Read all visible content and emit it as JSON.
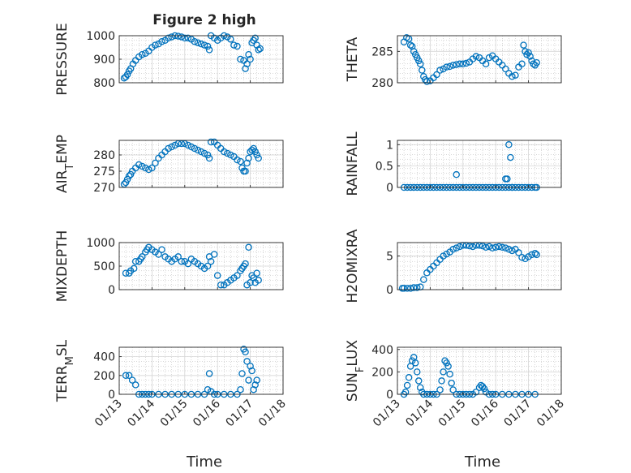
{
  "figure_title": "Figure 2 high",
  "colors": {
    "marker": "#0072BD",
    "axis": "#262626",
    "grid": "#b0b0b0",
    "background": "#ffffff"
  },
  "chart_data": [
    {
      "type": "scatter",
      "title": "Figure 2 high",
      "ylabel": "PRESSURE",
      "ylim": [
        800,
        1000
      ],
      "yticks": [
        800,
        900,
        1000
      ],
      "yticklabels": [
        "800",
        "900",
        "1000"
      ],
      "xlim": [
        13.0,
        18.0
      ],
      "xticklabels": [
        "01/13",
        "01/14",
        "01/15",
        "01/16",
        "01/17",
        "01/18"
      ],
      "grid": true,
      "show_xticklabels": false,
      "x": [
        13.15,
        13.2,
        13.25,
        13.3,
        13.35,
        13.42,
        13.5,
        13.6,
        13.7,
        13.8,
        13.9,
        14.0,
        14.1,
        14.2,
        14.3,
        14.4,
        14.5,
        14.6,
        14.7,
        14.8,
        14.9,
        15.0,
        15.1,
        15.2,
        15.3,
        15.4,
        15.5,
        15.6,
        15.7,
        15.75,
        15.8,
        15.9,
        16.0,
        16.1,
        16.2,
        16.3,
        16.4,
        16.5,
        16.6,
        16.7,
        16.8,
        16.85,
        16.9,
        16.95,
        17.0,
        17.05,
        17.1,
        17.15,
        17.2,
        17.25,
        17.3
      ],
      "y": [
        820,
        825,
        835,
        850,
        860,
        880,
        895,
        910,
        920,
        925,
        935,
        950,
        960,
        965,
        975,
        980,
        990,
        995,
        1000,
        998,
        995,
        990,
        990,
        985,
        975,
        970,
        965,
        960,
        955,
        940,
        1000,
        990,
        980,
        990,
        1000,
        995,
        985,
        960,
        955,
        900,
        895,
        860,
        880,
        920,
        900,
        970,
        980,
        990,
        960,
        940,
        945
      ]
    },
    {
      "type": "scatter",
      "ylabel": "THETA",
      "ylim": [
        280,
        287.5
      ],
      "yticks": [
        280,
        285
      ],
      "yticklabels": [
        "280",
        "285"
      ],
      "xlim": [
        13.0,
        18.0
      ],
      "grid": true,
      "show_xticklabels": false,
      "x": [
        13.2,
        13.28,
        13.35,
        13.4,
        13.45,
        13.5,
        13.55,
        13.6,
        13.65,
        13.7,
        13.75,
        13.8,
        13.85,
        13.9,
        14.0,
        14.1,
        14.2,
        14.3,
        14.4,
        14.5,
        14.6,
        14.7,
        14.8,
        14.9,
        15.0,
        15.1,
        15.2,
        15.3,
        15.4,
        15.5,
        15.6,
        15.7,
        15.8,
        15.9,
        16.0,
        16.1,
        16.2,
        16.3,
        16.4,
        16.5,
        16.6,
        16.7,
        16.8,
        16.85,
        16.9,
        16.95,
        17.0,
        17.05,
        17.1,
        17.15,
        17.2,
        17.25
      ],
      "y": [
        286.5,
        287.2,
        287.0,
        286.0,
        285.8,
        285.0,
        284.5,
        284.0,
        283.5,
        283.0,
        282.0,
        281.0,
        280.5,
        280.2,
        280.3,
        280.8,
        281.3,
        282.0,
        282.2,
        282.5,
        282.6,
        282.8,
        282.9,
        283.0,
        283.0,
        283.1,
        283.3,
        283.8,
        284.2,
        284.0,
        283.5,
        283.0,
        284.0,
        284.3,
        283.8,
        283.3,
        282.8,
        282.2,
        281.5,
        281.0,
        281.2,
        282.5,
        283.0,
        286.0,
        285.0,
        284.5,
        284.8,
        284.2,
        283.5,
        283.0,
        282.8,
        283.2
      ]
    },
    {
      "type": "scatter",
      "ylabel": "AIR_TEMP",
      "ylim": [
        270,
        284.5
      ],
      "yticks": [
        270,
        275,
        280
      ],
      "yticklabels": [
        "270",
        "275",
        "280"
      ],
      "xlim": [
        13.0,
        18.0
      ],
      "grid": true,
      "show_xticklabels": false,
      "x": [
        13.15,
        13.2,
        13.25,
        13.3,
        13.35,
        13.4,
        13.5,
        13.6,
        13.7,
        13.8,
        13.9,
        14.0,
        14.1,
        14.2,
        14.3,
        14.4,
        14.5,
        14.6,
        14.7,
        14.8,
        14.9,
        15.0,
        15.1,
        15.2,
        15.3,
        15.4,
        15.5,
        15.6,
        15.7,
        15.75,
        15.8,
        15.9,
        16.0,
        16.1,
        16.2,
        16.3,
        16.4,
        16.5,
        16.6,
        16.7,
        16.75,
        16.8,
        16.85,
        16.9,
        16.95,
        17.0,
        17.05,
        17.1,
        17.15,
        17.2,
        17.25
      ],
      "y": [
        271,
        271.5,
        272.5,
        273.5,
        274,
        275,
        276,
        277,
        276.5,
        276,
        275.5,
        276,
        277.5,
        279,
        280,
        281,
        282,
        282.5,
        283,
        283.5,
        283.5,
        283.5,
        283,
        282.5,
        282,
        281.5,
        281,
        280.5,
        280,
        279,
        284,
        284,
        283,
        282,
        281,
        280.5,
        280,
        279.5,
        278.5,
        278,
        276,
        275,
        275,
        277.5,
        279,
        281,
        281.5,
        282,
        281,
        280,
        279
      ]
    },
    {
      "type": "scatter",
      "ylabel": "RAINFALL",
      "ylim": [
        0,
        1.1
      ],
      "yticks": [
        0,
        0.5,
        1
      ],
      "yticklabels": [
        "0",
        "0.5",
        "1"
      ],
      "xlim": [
        13.0,
        18.0
      ],
      "grid": true,
      "show_xticklabels": false,
      "x": [
        13.2,
        13.3,
        13.4,
        13.5,
        13.6,
        13.7,
        13.8,
        13.9,
        14.0,
        14.1,
        14.2,
        14.3,
        14.4,
        14.5,
        14.6,
        14.7,
        14.8,
        14.9,
        15.0,
        15.1,
        15.2,
        15.3,
        15.4,
        15.5,
        15.6,
        15.7,
        15.8,
        15.9,
        16.0,
        16.1,
        16.2,
        16.3,
        16.4,
        16.5,
        16.6,
        16.7,
        16.8,
        16.9,
        17.0,
        17.1,
        17.2,
        17.25,
        14.8,
        16.3,
        16.35,
        16.4,
        16.45,
        16.5
      ],
      "y": [
        0,
        0,
        0,
        0,
        0,
        0,
        0,
        0,
        0,
        0,
        0,
        0,
        0,
        0,
        0,
        0,
        0,
        0,
        0,
        0,
        0,
        0,
        0,
        0,
        0,
        0,
        0,
        0,
        0,
        0,
        0,
        0,
        0,
        0,
        0,
        0,
        0,
        0,
        0,
        0,
        0,
        0,
        0.3,
        0.2,
        0.2,
        1.0,
        0.7,
        0
      ]
    },
    {
      "type": "scatter",
      "ylabel": "MIXDEPTH",
      "ylim": [
        0,
        1000
      ],
      "yticks": [
        0,
        500,
        1000
      ],
      "yticklabels": [
        "0",
        "500",
        "1000"
      ],
      "xlim": [
        13.0,
        18.0
      ],
      "grid": true,
      "show_xticklabels": false,
      "x": [
        13.2,
        13.3,
        13.35,
        13.45,
        13.5,
        13.6,
        13.65,
        13.7,
        13.8,
        13.85,
        13.9,
        14.0,
        14.1,
        14.2,
        14.3,
        14.4,
        14.5,
        14.6,
        14.7,
        14.8,
        14.9,
        15.0,
        15.1,
        15.2,
        15.3,
        15.4,
        15.5,
        15.6,
        15.7,
        15.75,
        15.8,
        15.9,
        16.0,
        16.1,
        16.2,
        16.3,
        16.4,
        16.5,
        16.6,
        16.7,
        16.75,
        16.8,
        16.85,
        16.9,
        16.95,
        17.0,
        17.05,
        17.1,
        17.15,
        17.2,
        17.25
      ],
      "y": [
        350,
        350,
        400,
        450,
        600,
        600,
        650,
        700,
        800,
        850,
        900,
        850,
        800,
        750,
        850,
        700,
        650,
        600,
        650,
        700,
        600,
        600,
        550,
        650,
        600,
        550,
        500,
        450,
        500,
        700,
        600,
        750,
        300,
        100,
        100,
        150,
        200,
        250,
        300,
        400,
        450,
        500,
        550,
        100,
        900,
        150,
        300,
        250,
        150,
        350,
        200
      ]
    },
    {
      "type": "scatter",
      "ylabel": "H2OMIXRA",
      "ylim": [
        0,
        7
      ],
      "yticks": [
        0,
        5
      ],
      "yticklabels": [
        "0",
        "5"
      ],
      "xlim": [
        13.0,
        18.0
      ],
      "grid": true,
      "show_xticklabels": false,
      "x": [
        13.15,
        13.2,
        13.3,
        13.4,
        13.5,
        13.6,
        13.7,
        13.8,
        13.9,
        14.0,
        14.1,
        14.2,
        14.3,
        14.4,
        14.5,
        14.6,
        14.7,
        14.8,
        14.9,
        15.0,
        15.1,
        15.2,
        15.3,
        15.4,
        15.5,
        15.6,
        15.7,
        15.8,
        15.9,
        16.0,
        16.1,
        16.2,
        16.3,
        16.4,
        16.5,
        16.6,
        16.7,
        16.8,
        16.9,
        17.0,
        17.1,
        17.2,
        17.25
      ],
      "y": [
        0.2,
        0.2,
        0.2,
        0.2,
        0.3,
        0.3,
        0.4,
        1.5,
        2.5,
        3.0,
        3.5,
        4.0,
        4.5,
        5.0,
        5.3,
        5.6,
        6.0,
        6.2,
        6.4,
        6.6,
        6.6,
        6.5,
        6.4,
        6.6,
        6.6,
        6.5,
        6.3,
        6.4,
        6.2,
        6.3,
        6.4,
        6.3,
        6.2,
        6.0,
        5.8,
        6.0,
        5.5,
        4.8,
        4.6,
        4.9,
        5.2,
        5.4,
        5.2
      ]
    },
    {
      "type": "scatter",
      "ylabel": "TERR_MSL",
      "ylim": [
        0,
        500
      ],
      "yticks": [
        0,
        200,
        400
      ],
      "yticklabels": [
        "0",
        "200",
        "400"
      ],
      "xlim": [
        13.0,
        18.0
      ],
      "grid": true,
      "show_xticklabels": true,
      "x": [
        13.2,
        13.3,
        13.4,
        13.5,
        13.6,
        13.7,
        13.8,
        13.9,
        14.0,
        14.2,
        14.4,
        14.6,
        14.8,
        15.0,
        15.2,
        15.4,
        15.6,
        15.7,
        15.75,
        15.8,
        15.9,
        16.0,
        16.2,
        16.4,
        16.6,
        16.7,
        16.75,
        16.8,
        16.85,
        16.9,
        16.95,
        17.0,
        17.05,
        17.1,
        17.15,
        17.2
      ],
      "y": [
        200,
        200,
        150,
        100,
        0,
        0,
        0,
        0,
        0,
        0,
        0,
        0,
        0,
        0,
        0,
        0,
        0,
        50,
        220,
        30,
        0,
        0,
        0,
        0,
        0,
        50,
        220,
        480,
        450,
        350,
        150,
        300,
        250,
        50,
        100,
        150
      ]
    },
    {
      "type": "scatter",
      "ylabel": "SUN_FLUX",
      "ylim": [
        0,
        420
      ],
      "yticks": [
        0,
        200,
        400
      ],
      "yticklabels": [
        "0",
        "200",
        "400"
      ],
      "xlim": [
        13.0,
        18.0
      ],
      "grid": true,
      "show_xticklabels": true,
      "x": [
        13.2,
        13.25,
        13.3,
        13.35,
        13.4,
        13.45,
        13.5,
        13.55,
        13.6,
        13.65,
        13.7,
        13.75,
        13.8,
        13.9,
        14.0,
        14.1,
        14.2,
        14.3,
        14.35,
        14.4,
        14.45,
        14.5,
        14.55,
        14.6,
        14.65,
        14.7,
        14.8,
        14.9,
        15.0,
        15.1,
        15.2,
        15.3,
        15.4,
        15.5,
        15.55,
        15.6,
        15.65,
        15.7,
        15.8,
        15.9,
        16.0,
        16.2,
        16.4,
        16.6,
        16.8,
        17.0,
        17.2
      ],
      "y": [
        0,
        20,
        80,
        150,
        250,
        300,
        330,
        280,
        200,
        120,
        60,
        20,
        0,
        0,
        0,
        0,
        0,
        40,
        120,
        200,
        300,
        280,
        250,
        180,
        100,
        40,
        0,
        0,
        0,
        0,
        0,
        0,
        20,
        60,
        80,
        70,
        50,
        20,
        0,
        0,
        0,
        0,
        0,
        0,
        0,
        0,
        0
      ]
    }
  ],
  "xlabel": "Time"
}
